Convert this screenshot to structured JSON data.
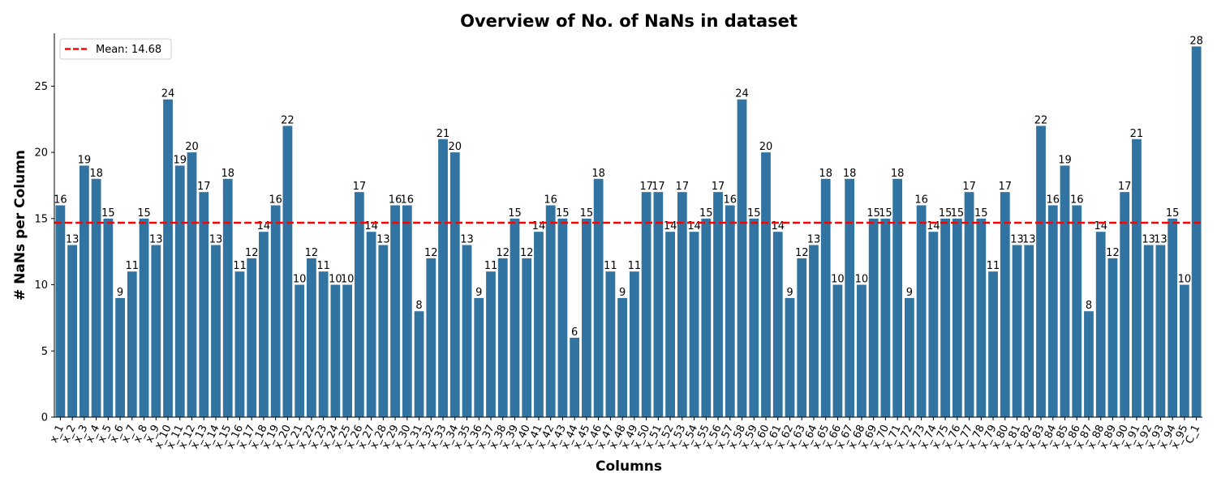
{
  "chart_data": {
    "type": "bar",
    "title": "Overview of No. of NaNs in dataset",
    "xlabel": "Columns",
    "ylabel": "# NaNs per Column",
    "ylim": [
      0,
      29
    ],
    "yticks": [
      0,
      5,
      10,
      15,
      20,
      25
    ],
    "grid": false,
    "bar_color": "#3274a1",
    "categories": [
      "x_1",
      "x_2",
      "x_3",
      "x_4",
      "x_5",
      "x_6",
      "x_7",
      "x_8",
      "x_9",
      "x_10",
      "x_11",
      "x_12",
      "x_13",
      "x_14",
      "x_15",
      "x_16",
      "x_17",
      "x_18",
      "x_19",
      "x_20",
      "x_21",
      "x_22",
      "x_23",
      "x_24",
      "x_25",
      "x_26",
      "x_27",
      "x_28",
      "x_29",
      "x_30",
      "x_31",
      "x_32",
      "x_33",
      "x_34",
      "x_35",
      "x_36",
      "x_37",
      "x_38",
      "x_39",
      "x_40",
      "x_41",
      "x_42",
      "x_43",
      "x_44",
      "x_45",
      "x_46",
      "x_47",
      "x_48",
      "x_49",
      "x_50",
      "x_51",
      "x_52",
      "x_53",
      "x_54",
      "x_55",
      "x_56",
      "x_57",
      "x_58",
      "x_59",
      "x_60",
      "x_61",
      "x_62",
      "x_63",
      "x_64",
      "x_65",
      "x_66",
      "x_67",
      "x_68",
      "x_69",
      "x_70",
      "x_71",
      "x_72",
      "x_73",
      "x_74",
      "x_75",
      "x_76",
      "x_77",
      "x_78",
      "x_79",
      "x_80",
      "x_81",
      "x_82",
      "x_83",
      "x_84",
      "x_85",
      "x_86",
      "x_87",
      "x_88",
      "x_89",
      "x_90",
      "x_91",
      "x_92",
      "x_93",
      "x_94",
      "x_95",
      "C_1"
    ],
    "values": [
      16,
      13,
      19,
      18,
      15,
      9,
      11,
      15,
      13,
      24,
      19,
      20,
      17,
      13,
      18,
      11,
      12,
      14,
      16,
      22,
      10,
      12,
      11,
      10,
      10,
      17,
      14,
      13,
      16,
      16,
      8,
      12,
      21,
      20,
      13,
      9,
      11,
      12,
      15,
      12,
      14,
      16,
      15,
      6,
      15,
      18,
      11,
      9,
      11,
      17,
      17,
      14,
      17,
      14,
      15,
      17,
      16,
      24,
      15,
      20,
      14,
      9,
      12,
      13,
      18,
      10,
      18,
      10,
      15,
      15,
      18,
      9,
      16,
      14,
      15,
      15,
      17,
      15,
      11,
      17,
      13,
      13,
      22,
      16,
      19,
      16,
      8,
      14,
      12,
      17,
      21,
      13,
      13,
      15,
      10,
      28
    ],
    "mean": {
      "value": 14.68,
      "label": "Mean: 14.68",
      "color": "#ff0000",
      "style": "dashed"
    },
    "legend_placement": "top-left"
  }
}
